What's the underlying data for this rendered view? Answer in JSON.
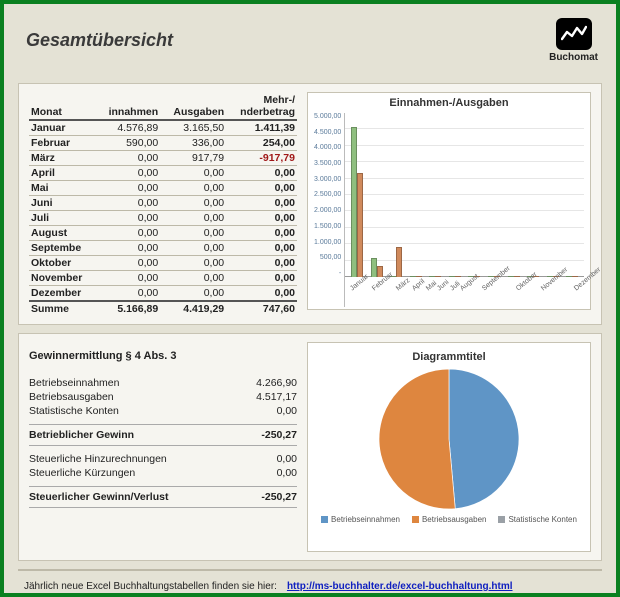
{
  "title": "Gesamtübersicht",
  "brand": {
    "name": "Buchomat"
  },
  "table": {
    "headers": [
      "Monat",
      "innahmen",
      "Ausgaben",
      "Mehr-/\nnderbetrag"
    ],
    "rows": [
      {
        "m": "Januar",
        "in": "4.576,89",
        "out": "3.165,50",
        "diff": "1.411,39",
        "neg": false
      },
      {
        "m": "Februar",
        "in": "590,00",
        "out": "336,00",
        "diff": "254,00",
        "neg": false
      },
      {
        "m": "März",
        "in": "0,00",
        "out": "917,79",
        "diff": "-917,79",
        "neg": true
      },
      {
        "m": "April",
        "in": "0,00",
        "out": "0,00",
        "diff": "0,00",
        "neg": false
      },
      {
        "m": "Mai",
        "in": "0,00",
        "out": "0,00",
        "diff": "0,00",
        "neg": false
      },
      {
        "m": "Juni",
        "in": "0,00",
        "out": "0,00",
        "diff": "0,00",
        "neg": false
      },
      {
        "m": "Juli",
        "in": "0,00",
        "out": "0,00",
        "diff": "0,00",
        "neg": false
      },
      {
        "m": "August",
        "in": "0,00",
        "out": "0,00",
        "diff": "0,00",
        "neg": false
      },
      {
        "m": "Septembe",
        "in": "0,00",
        "out": "0,00",
        "diff": "0,00",
        "neg": false
      },
      {
        "m": "Oktober",
        "in": "0,00",
        "out": "0,00",
        "diff": "0,00",
        "neg": false
      },
      {
        "m": "November",
        "in": "0,00",
        "out": "0,00",
        "diff": "0,00",
        "neg": false
      },
      {
        "m": "Dezember",
        "in": "0,00",
        "out": "0,00",
        "diff": "0,00",
        "neg": false
      }
    ],
    "sum": {
      "m": "Summe",
      "in": "5.166,89",
      "out": "4.419,29",
      "diff": "747,60"
    }
  },
  "barchart": {
    "type": "bar",
    "title": "Einnahmen-/Ausgaben",
    "categories": [
      "Januar",
      "Februar",
      "März",
      "April",
      "Mai",
      "Juni",
      "Juli",
      "August",
      "September",
      "Oktober",
      "November",
      "Dezember"
    ],
    "series": [
      {
        "name": "Einnahmen",
        "color": "#8fbf7f",
        "values": [
          4576.89,
          590,
          0,
          0,
          0,
          0,
          0,
          0,
          0,
          0,
          0,
          0
        ]
      },
      {
        "name": "Ausgaben",
        "color": "#d08a5c",
        "values": [
          3165.5,
          336,
          917.79,
          0,
          0,
          0,
          0,
          0,
          0,
          0,
          0,
          0
        ]
      }
    ],
    "ylim": [
      0,
      5000
    ],
    "yticks": [
      "5.000,00",
      "4.500,00",
      "4.000,00",
      "3.500,00",
      "3.000,00",
      "2.500,00",
      "2.000,00",
      "1.500,00",
      "1.000,00",
      "500,00",
      "-"
    ],
    "grid_color": "#e6e6e6",
    "axis_color": "#999999",
    "tick_color": "#5a7a9a",
    "background_color": "#ffffff",
    "label_fontsize": 7
  },
  "gewinn": {
    "title": "Gewinnermittlung § 4 Abs. 3",
    "rows1": [
      {
        "label": "Betriebseinnahmen",
        "val": "4.266,90"
      },
      {
        "label": "Betriebsausgaben",
        "val": "4.517,17"
      },
      {
        "label": "Statistische Konten",
        "val": "0,00"
      }
    ],
    "r1": {
      "label": "Betrieblicher Gewinn",
      "val": "-250,27"
    },
    "rows2": [
      {
        "label": "Steuerliche Hinzurechnungen",
        "val": "0,00"
      },
      {
        "label": "Steuerliche Kürzungen",
        "val": "0,00"
      }
    ],
    "r2": {
      "label": "Steuerlicher Gewinn/Verlust",
      "val": "-250,27"
    }
  },
  "piechart": {
    "type": "pie",
    "title": "Diagrammtitel",
    "slices": [
      {
        "label": "Betriebseinnahmen",
        "value": 4266.9,
        "color": "#5f95c6"
      },
      {
        "label": "Betriebsausgaben",
        "value": 4517.17,
        "color": "#de863f"
      },
      {
        "label": "Statistische Konten",
        "value": 0,
        "color": "#9aa0a6"
      }
    ],
    "background_color": "#ffffff",
    "border_color": "#ffffff",
    "label_fontsize": 8
  },
  "footer": {
    "text": "Jährlich neue Excel Buchhaltungstabellen finden sie hier:",
    "link_text": "http://ms-buchhalter.de/excel-buchhaltung.html"
  }
}
